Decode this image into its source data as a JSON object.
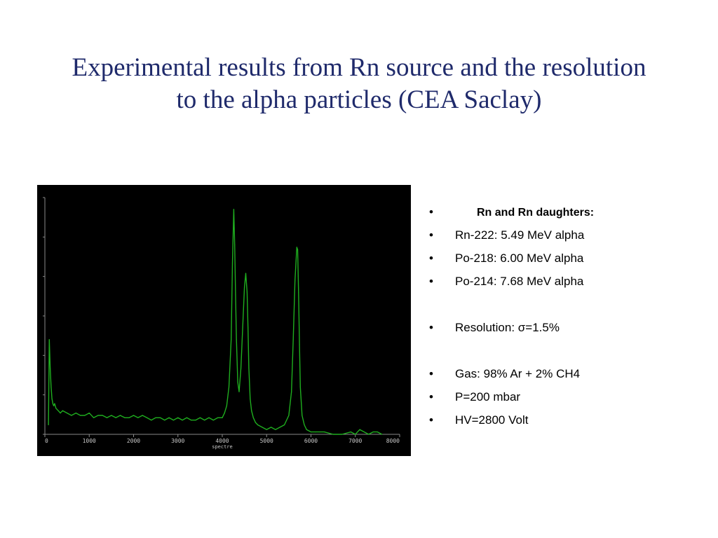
{
  "slide": {
    "title_line1": "Experimental results from Rn source and the resolution",
    "title_line2": "to the alpha particles (CEA Saclay)"
  },
  "bullets": [
    {
      "text": "Rn and Rn daughters:",
      "bold": true
    },
    {
      "text": "Rn-222: 5.49 MeV alpha"
    },
    {
      "text": "Po-218: 6.00 MeV alpha"
    },
    {
      "text": "Po-214: 7.68 MeV alpha"
    },
    {
      "spacer": true
    },
    {
      "text": "Resolution: σ=1.5%"
    },
    {
      "spacer": true
    },
    {
      "text": "Gas: 98% Ar + 2% CH4"
    },
    {
      "text": "P=200 mbar"
    },
    {
      "text": "HV=2800 Volt"
    }
  ],
  "bullet_symbol": "•",
  "colors": {
    "title": "#1f2a6b",
    "plot_background": "#000000",
    "trace": "#1fae1f",
    "axis": "#8a8a8a",
    "tick_text": "#c8c8c8"
  },
  "chart_data": {
    "type": "line",
    "xlabel": "spectre",
    "ylabel": "",
    "xlim": [
      0,
      8000
    ],
    "ylim": [
      0,
      100
    ],
    "x_ticks": [
      0,
      1000,
      2000,
      3000,
      4000,
      5000,
      6000,
      7000,
      8000
    ],
    "grid": false,
    "series": [
      {
        "x": [
          80,
          100,
          120,
          140,
          160,
          180,
          200,
          220,
          250,
          300,
          350,
          400,
          500,
          600,
          700,
          800,
          900,
          1000,
          1100,
          1200,
          1300,
          1400,
          1500,
          1600,
          1700,
          1800,
          1900,
          2000,
          2100,
          2200,
          2300,
          2400,
          2500,
          2600,
          2700,
          2800,
          2900,
          3000,
          3100,
          3200,
          3300,
          3400,
          3500,
          3600,
          3700,
          3800,
          3900,
          4000,
          4050,
          4100,
          4150,
          4200,
          4230,
          4260,
          4280,
          4300,
          4320,
          4350,
          4380,
          4420,
          4460,
          4500,
          4530,
          4560,
          4580,
          4600,
          4630,
          4660,
          4700,
          4750,
          4800,
          4900,
          5000,
          5100,
          5200,
          5300,
          5400,
          5500,
          5560,
          5600,
          5640,
          5680,
          5700,
          5720,
          5740,
          5760,
          5800,
          5850,
          5900,
          6000,
          6100,
          6200,
          6300,
          6500,
          6700,
          6900,
          7000,
          7100,
          7200,
          7300,
          7400,
          7500,
          7600
        ],
        "values": [
          4,
          40,
          28,
          20,
          15,
          13,
          12,
          13,
          11,
          10,
          9,
          10,
          9,
          8,
          9,
          8,
          8,
          9,
          7,
          8,
          8,
          7,
          8,
          7,
          8,
          7,
          7,
          8,
          7,
          8,
          7,
          6,
          7,
          7,
          6,
          7,
          6,
          7,
          6,
          7,
          6,
          6,
          7,
          6,
          7,
          6,
          7,
          7,
          9,
          12,
          20,
          40,
          72,
          95,
          80,
          58,
          40,
          22,
          18,
          28,
          45,
          62,
          68,
          60,
          45,
          28,
          15,
          10,
          7,
          5,
          4,
          3,
          2,
          3,
          2,
          3,
          4,
          8,
          18,
          40,
          65,
          79,
          78,
          60,
          38,
          20,
          8,
          4,
          2,
          1,
          1,
          1,
          1,
          0,
          0,
          1,
          0,
          2,
          1,
          0,
          1,
          1,
          0
        ]
      }
    ]
  }
}
